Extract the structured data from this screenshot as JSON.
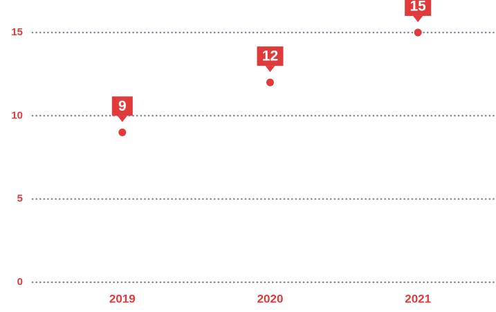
{
  "chart_data": {
    "type": "dot",
    "categories": [
      "2019",
      "2020",
      "2021"
    ],
    "values": [
      9,
      12,
      15
    ],
    "color": "#e03a3a",
    "ylim": [
      0,
      15.2
    ],
    "yticks": [
      0,
      5,
      10,
      15
    ],
    "grid": true
  }
}
